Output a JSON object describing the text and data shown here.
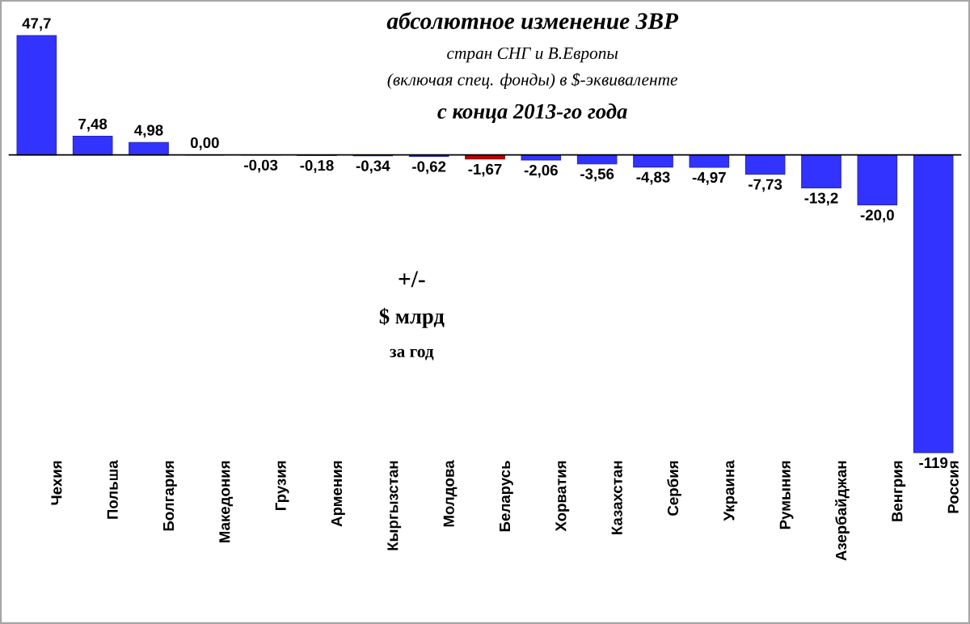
{
  "chart_data": {
    "type": "bar",
    "title": "абсолютное изменение  ЗВР",
    "subtitle": "стран СНГ и В.Европы",
    "annotations": [
      "(включая  спец. фонды) в $-эквиваленте",
      "с конца 2013-го года",
      "+/-",
      "$ млрд",
      "за год"
    ],
    "categories": [
      "Чехия",
      "Польша",
      "Болгария",
      "Македония",
      "Грузия",
      "Армения",
      "Кыргызстан",
      "Молдова",
      "Беларусь",
      "Хорватия",
      "Казахстан",
      "Сербия",
      "Украина",
      "Румыния",
      "Азербайджан",
      "Венгрия",
      "Россия"
    ],
    "values": [
      47.7,
      7.48,
      4.98,
      0.0,
      -0.03,
      -0.18,
      -0.34,
      -0.62,
      -1.67,
      -2.06,
      -3.56,
      -4.83,
      -4.97,
      -7.73,
      -13.2,
      -20.0,
      -119
    ],
    "colors": [
      "#3333ff",
      "#3333ff",
      "#3333ff",
      "#3333ff",
      "#3333ff",
      "#3333ff",
      "#3333ff",
      "#3333ff",
      "#c00000",
      "#3333ff",
      "#3333ff",
      "#3333ff",
      "#3333ff",
      "#3333ff",
      "#3333ff",
      "#3333ff",
      "#3333ff"
    ],
    "value_labels": [
      "47,7",
      "7,48",
      "4,98",
      "0,00",
      "-0,03",
      "-0,18",
      "-0,34",
      "-0,62",
      "-1,67",
      "-2,06",
      "-3,56",
      "-4,83",
      "-4,97",
      "-7,73",
      "-13,2",
      "-20,0",
      "-119"
    ]
  }
}
